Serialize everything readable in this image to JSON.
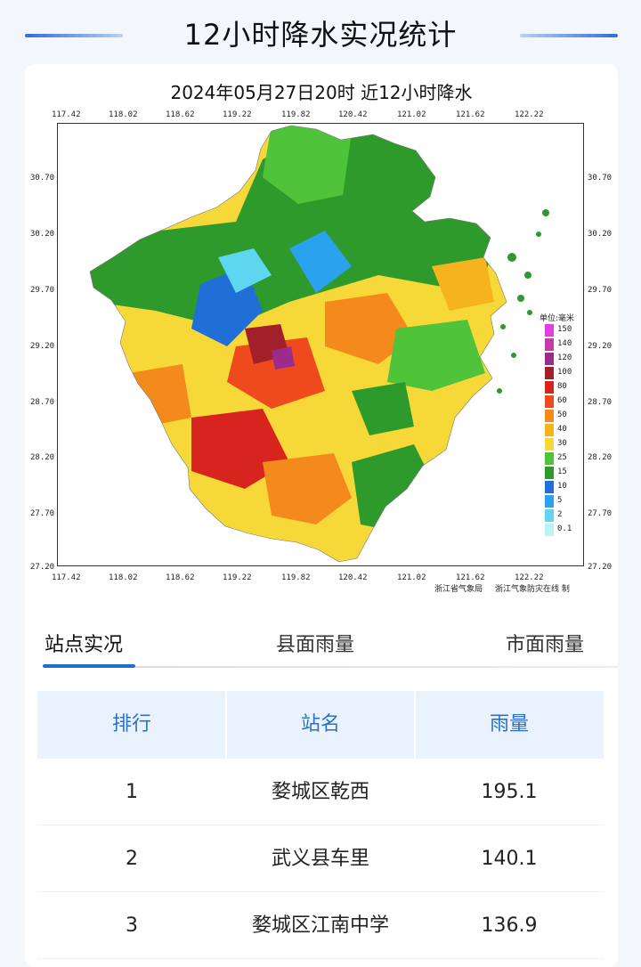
{
  "header": {
    "title": "12小时降水实况统计"
  },
  "map": {
    "caption": "2024年05月27日20时  近12小时降水",
    "x_ticks": [
      "117.42",
      "118.02",
      "118.62",
      "119.22",
      "119.82",
      "120.42",
      "121.02",
      "121.62",
      "122.22"
    ],
    "y_ticks": [
      "30.70",
      "30.20",
      "29.70",
      "29.20",
      "28.70",
      "28.20",
      "27.70",
      "27.20"
    ],
    "legend_unit": "单位:毫米",
    "legend": [
      {
        "label": "150",
        "color": "#e23fe0"
      },
      {
        "label": "140",
        "color": "#c63aa8"
      },
      {
        "label": "120",
        "color": "#9b2c8e"
      },
      {
        "label": "100",
        "color": "#a1202a"
      },
      {
        "label": "80",
        "color": "#d8241f"
      },
      {
        "label": "60",
        "color": "#ef4a1d"
      },
      {
        "label": "50",
        "color": "#f58a1c"
      },
      {
        "label": "40",
        "color": "#f5b41e"
      },
      {
        "label": "30",
        "color": "#f6d838"
      },
      {
        "label": "25",
        "color": "#4fc43a"
      },
      {
        "label": "15",
        "color": "#2f9a2c"
      },
      {
        "label": "10",
        "color": "#1f6fd6"
      },
      {
        "label": "5",
        "color": "#2aa2ee"
      },
      {
        "label": "2",
        "color": "#5fd6ef"
      },
      {
        "label": "0.1",
        "color": "#b8f3f6"
      }
    ],
    "credit_left": "浙江省气象局",
    "credit_right": "浙江气象防灾在线 制"
  },
  "tabs": [
    {
      "label": "站点实况",
      "active": true
    },
    {
      "label": "县面雨量",
      "active": false
    },
    {
      "label": "市面雨量",
      "active": false
    }
  ],
  "table": {
    "headers": [
      "排行",
      "站名",
      "雨量"
    ],
    "rows": [
      {
        "rank": "1",
        "station": "婺城区乾西",
        "rain": "195.1"
      },
      {
        "rank": "2",
        "station": "武义县车里",
        "rain": "140.1"
      },
      {
        "rank": "3",
        "station": "婺城区江南中学",
        "rain": "136.9"
      }
    ]
  }
}
